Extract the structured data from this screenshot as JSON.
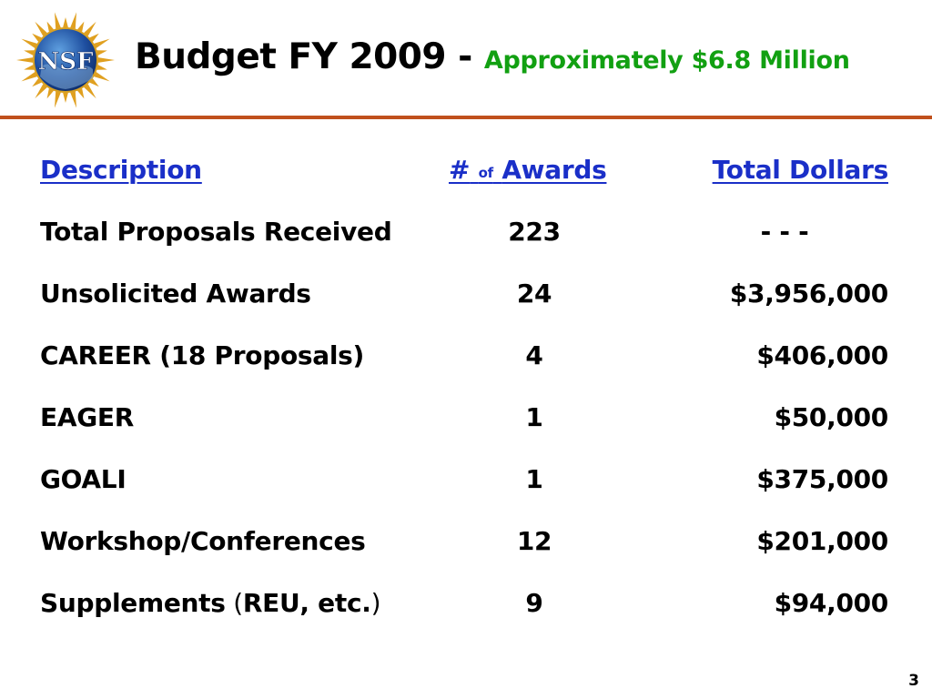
{
  "slide": {
    "title_main": "Budget FY 2009",
    "title_dash": " - ",
    "title_sub": "Approximately $6.8 Million",
    "page_number": "3",
    "logo_text": "NSF"
  },
  "table": {
    "headers": {
      "description": "Description",
      "awards_hash": "#",
      "awards_of": "of",
      "awards_word": "Awards",
      "total": "Total Dollars"
    },
    "rows": [
      {
        "description": "Total Proposals Received",
        "awards": "223",
        "dollars": "- - -"
      },
      {
        "description": "Unsolicited Awards",
        "awards": "24",
        "dollars": "$3,956,000"
      },
      {
        "description": "CAREER (18 Proposals)",
        "awards": "4",
        "dollars": "$406,000"
      },
      {
        "description": "EAGER",
        "awards": "1",
        "dollars": "$50,000"
      },
      {
        "description": "GOALI",
        "awards": "1",
        "dollars": "$375,000"
      },
      {
        "description": "Workshop/Conferences",
        "awards": "12",
        "dollars": "$201,000"
      },
      {
        "description_main": "Supplements",
        "description_open": " (",
        "description_inner": "REU, etc.",
        "description_close": ")",
        "awards": "9",
        "dollars": "$94,000"
      }
    ]
  },
  "colors": {
    "title_sub": "#12a012",
    "header_link": "#1a2fc8",
    "rule": "#c0501c",
    "logo_blue": "#1f4fa0",
    "logo_gold": "#e0a020"
  }
}
